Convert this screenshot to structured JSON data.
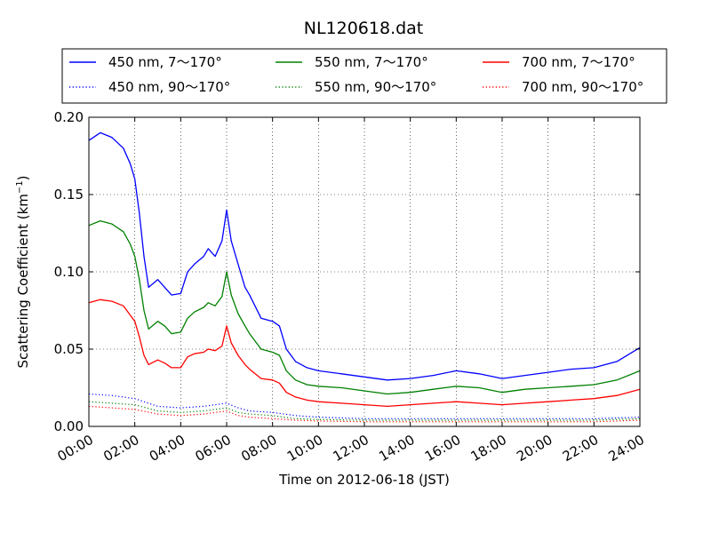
{
  "chart_data": {
    "type": "line",
    "title": "NL120618.dat",
    "xlabel": "Time on 2012-06-18 (JST)",
    "ylabel_main": "Scattering Coefficient (km",
    "ylabel_sup": "−1",
    "ylabel_tail": ")",
    "xlim": [
      0,
      24
    ],
    "ylim": [
      0.0,
      0.2
    ],
    "grid": true,
    "legend_position": "top",
    "x_tick_labels": [
      "00:00",
      "02:00",
      "04:00",
      "06:00",
      "08:00",
      "10:00",
      "12:00",
      "14:00",
      "16:00",
      "18:00",
      "20:00",
      "22:00",
      "24:00"
    ],
    "y_ticks": [
      0.0,
      0.05,
      0.1,
      0.15,
      0.2
    ],
    "y_tick_labels": [
      "0.00",
      "0.05",
      "0.10",
      "0.15",
      "0.20"
    ],
    "series": [
      {
        "name": "450 nm, 7～170°",
        "color": "#0000ff",
        "style": "solid",
        "x": [
          0.0,
          0.5,
          1.0,
          1.5,
          1.8,
          2.0,
          2.2,
          2.4,
          2.6,
          3.0,
          3.3,
          3.6,
          4.0,
          4.3,
          4.6,
          5.0,
          5.2,
          5.5,
          5.8,
          6.0,
          6.2,
          6.5,
          6.8,
          7.0,
          7.5,
          8.0,
          8.3,
          8.6,
          9.0,
          9.5,
          10.0,
          11.0,
          12.0,
          13.0,
          14.0,
          15.0,
          16.0,
          17.0,
          18.0,
          19.0,
          20.0,
          21.0,
          22.0,
          23.0,
          24.0
        ],
        "y": [
          0.185,
          0.19,
          0.187,
          0.18,
          0.17,
          0.16,
          0.138,
          0.11,
          0.09,
          0.095,
          0.09,
          0.085,
          0.086,
          0.1,
          0.105,
          0.11,
          0.115,
          0.11,
          0.12,
          0.14,
          0.12,
          0.105,
          0.09,
          0.085,
          0.07,
          0.068,
          0.065,
          0.05,
          0.042,
          0.038,
          0.036,
          0.034,
          0.032,
          0.03,
          0.031,
          0.033,
          0.036,
          0.034,
          0.031,
          0.033,
          0.035,
          0.037,
          0.038,
          0.042,
          0.051
        ]
      },
      {
        "name": "550 nm, 7～170°",
        "color": "#008000",
        "style": "solid",
        "x": [
          0.0,
          0.5,
          1.0,
          1.5,
          1.8,
          2.0,
          2.2,
          2.4,
          2.6,
          3.0,
          3.3,
          3.6,
          4.0,
          4.3,
          4.6,
          5.0,
          5.2,
          5.5,
          5.8,
          6.0,
          6.2,
          6.5,
          6.8,
          7.0,
          7.5,
          8.0,
          8.3,
          8.6,
          9.0,
          9.5,
          10.0,
          11.0,
          12.0,
          13.0,
          14.0,
          15.0,
          16.0,
          17.0,
          18.0,
          19.0,
          20.0,
          21.0,
          22.0,
          23.0,
          24.0
        ],
        "y": [
          0.13,
          0.133,
          0.131,
          0.126,
          0.118,
          0.11,
          0.095,
          0.075,
          0.063,
          0.068,
          0.065,
          0.06,
          0.061,
          0.07,
          0.074,
          0.077,
          0.08,
          0.078,
          0.084,
          0.1,
          0.085,
          0.073,
          0.065,
          0.06,
          0.05,
          0.048,
          0.046,
          0.036,
          0.03,
          0.027,
          0.026,
          0.025,
          0.023,
          0.021,
          0.022,
          0.024,
          0.026,
          0.025,
          0.022,
          0.024,
          0.025,
          0.026,
          0.027,
          0.03,
          0.036
        ]
      },
      {
        "name": "700 nm, 7～170°",
        "color": "#ff0000",
        "style": "solid",
        "x": [
          0.0,
          0.5,
          1.0,
          1.5,
          1.8,
          2.0,
          2.2,
          2.4,
          2.6,
          3.0,
          3.3,
          3.6,
          4.0,
          4.3,
          4.6,
          5.0,
          5.2,
          5.5,
          5.8,
          6.0,
          6.2,
          6.5,
          6.8,
          7.0,
          7.5,
          8.0,
          8.3,
          8.6,
          9.0,
          9.5,
          10.0,
          11.0,
          12.0,
          13.0,
          14.0,
          15.0,
          16.0,
          17.0,
          18.0,
          19.0,
          20.0,
          21.0,
          22.0,
          23.0,
          24.0
        ],
        "y": [
          0.08,
          0.082,
          0.081,
          0.078,
          0.072,
          0.068,
          0.058,
          0.046,
          0.04,
          0.043,
          0.041,
          0.038,
          0.038,
          0.045,
          0.047,
          0.048,
          0.05,
          0.049,
          0.052,
          0.065,
          0.054,
          0.046,
          0.04,
          0.037,
          0.031,
          0.03,
          0.028,
          0.022,
          0.019,
          0.017,
          0.016,
          0.015,
          0.014,
          0.013,
          0.014,
          0.015,
          0.016,
          0.015,
          0.014,
          0.015,
          0.016,
          0.017,
          0.018,
          0.02,
          0.024
        ]
      },
      {
        "name": "450 nm, 90～170°",
        "color": "#0000ff",
        "style": "dotted",
        "x": [
          0.0,
          1.0,
          2.0,
          3.0,
          4.0,
          5.0,
          6.0,
          6.5,
          7.0,
          8.0,
          9.0,
          10.0,
          12.0,
          14.0,
          16.0,
          18.0,
          20.0,
          22.0,
          24.0
        ],
        "y": [
          0.021,
          0.02,
          0.018,
          0.013,
          0.012,
          0.013,
          0.015,
          0.012,
          0.01,
          0.009,
          0.007,
          0.006,
          0.005,
          0.005,
          0.005,
          0.005,
          0.005,
          0.005,
          0.006
        ]
      },
      {
        "name": "550 nm, 90～170°",
        "color": "#008000",
        "style": "dotted",
        "x": [
          0.0,
          1.0,
          2.0,
          3.0,
          4.0,
          5.0,
          6.0,
          6.5,
          7.0,
          8.0,
          9.0,
          10.0,
          12.0,
          14.0,
          16.0,
          18.0,
          20.0,
          22.0,
          24.0
        ],
        "y": [
          0.016,
          0.015,
          0.014,
          0.01,
          0.009,
          0.01,
          0.012,
          0.009,
          0.008,
          0.007,
          0.005,
          0.0045,
          0.004,
          0.004,
          0.004,
          0.004,
          0.004,
          0.004,
          0.005
        ]
      },
      {
        "name": "700 nm, 90～170°",
        "color": "#ff0000",
        "style": "dotted",
        "x": [
          0.0,
          1.0,
          2.0,
          3.0,
          4.0,
          5.0,
          6.0,
          6.5,
          7.0,
          8.0,
          9.0,
          10.0,
          12.0,
          14.0,
          16.0,
          18.0,
          20.0,
          22.0,
          24.0
        ],
        "y": [
          0.013,
          0.012,
          0.011,
          0.008,
          0.007,
          0.008,
          0.01,
          0.007,
          0.006,
          0.005,
          0.004,
          0.0035,
          0.003,
          0.003,
          0.003,
          0.003,
          0.003,
          0.003,
          0.004
        ]
      }
    ]
  }
}
